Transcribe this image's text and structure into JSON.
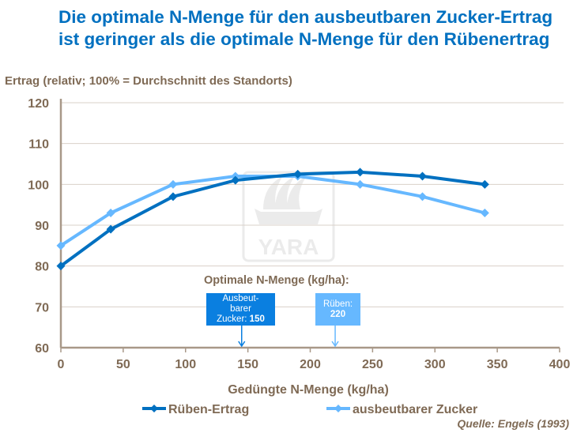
{
  "chart_data": {
    "type": "line",
    "title": "Die optimale N-Menge für den ausbeutbaren Zucker-Ertrag ist geringer als die optimale N-Menge für den Rübenertrag",
    "ylabel": "Ertrag (relativ; 100% = Durchschnitt des Standorts)",
    "xlabel": "Gedüngte N-Menge (kg/ha)",
    "xlim": [
      0,
      400
    ],
    "ylim": [
      60,
      120
    ],
    "xticks": [
      0,
      50,
      100,
      150,
      200,
      250,
      300,
      350,
      400
    ],
    "yticks": [
      60,
      70,
      80,
      90,
      100,
      110,
      120
    ],
    "grid": "horizontal",
    "legend": "bottom",
    "x": [
      0,
      40,
      90,
      140,
      190,
      240,
      290,
      340
    ],
    "series": [
      {
        "name": "Rüben-Ertrag",
        "color": "#0070C0",
        "values": [
          80,
          89,
          97,
          101,
          102.5,
          103,
          102,
          100
        ]
      },
      {
        "name": "ausbeutbarer Zucker",
        "color": "#66B8FF",
        "values": [
          85,
          93,
          100,
          102,
          102,
          100,
          97,
          93
        ]
      }
    ],
    "annotations": {
      "heading": "Optimale N-Menge (kg/ha):",
      "zucker": {
        "line1": "Ausbeut-",
        "line2": "barer",
        "line3": "Zucker: ",
        "value": "150",
        "x": 145
      },
      "rueben": {
        "line1": "Rüben:",
        "value": "220",
        "x": 220
      }
    },
    "source": "Quelle: Engels (1993)",
    "watermark": "YARA"
  }
}
